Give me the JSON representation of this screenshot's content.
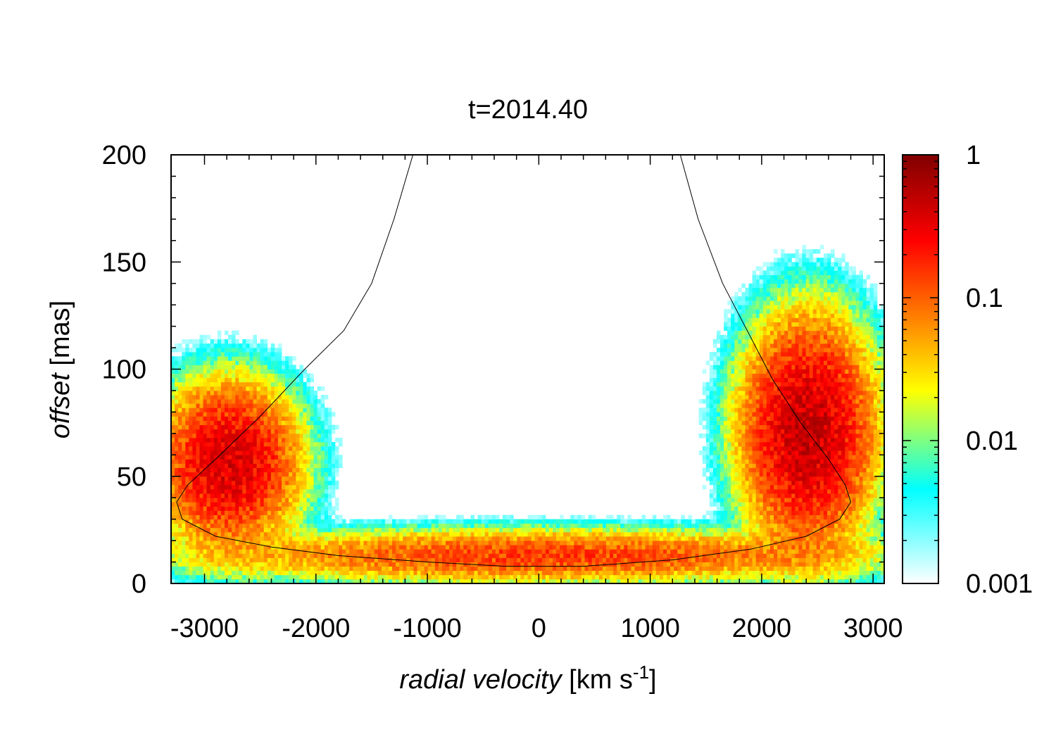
{
  "chart_data": {
    "type": "heatmap",
    "title": "t=2014.40",
    "xlabel": {
      "italic": "radial velocity",
      "unit_prefix": " [km s",
      "unit_sup": "-1",
      "unit_suffix": "]"
    },
    "ylabel": {
      "italic": "offset",
      "unit": " [mas]"
    },
    "xlim": [
      -3300,
      3100
    ],
    "ylim": [
      0,
      200
    ],
    "x_ticks": [
      -3000,
      -2000,
      -1000,
      0,
      1000,
      2000,
      3000
    ],
    "x_tick_labels": [
      "-3000",
      "-2000",
      "-1000",
      "0",
      "1000",
      "2000",
      "3000"
    ],
    "y_ticks": [
      0,
      50,
      100,
      150,
      200
    ],
    "y_tick_labels": [
      "0",
      "50",
      "100",
      "150",
      "200"
    ],
    "colorbar": {
      "scale": "log",
      "range": [
        0.001,
        1
      ],
      "ticks": [
        0.001,
        0.01,
        0.1,
        1
      ],
      "tick_labels": [
        "0.001",
        "0.01",
        "0.1",
        "1"
      ],
      "colors": [
        "#ffffff",
        "#00ffff",
        "#ffff00",
        "#ff8000",
        "#ff0000",
        "#800000"
      ]
    },
    "model_curve": {
      "color": "#000000",
      "points": [
        [
          -1130,
          200
        ],
        [
          -1300,
          170
        ],
        [
          -1500,
          140
        ],
        [
          -1750,
          118
        ],
        [
          -2100,
          100
        ],
        [
          -2500,
          78
        ],
        [
          -2900,
          58
        ],
        [
          -3150,
          46
        ],
        [
          -3250,
          38
        ],
        [
          -3200,
          30
        ],
        [
          -2900,
          22
        ],
        [
          -2400,
          17
        ],
        [
          -1800,
          13
        ],
        [
          -1000,
          10
        ],
        [
          -300,
          8
        ],
        [
          400,
          8
        ],
        [
          1200,
          11
        ],
        [
          1900,
          16
        ],
        [
          2400,
          22
        ],
        [
          2700,
          30
        ],
        [
          2800,
          38
        ],
        [
          2750,
          46
        ],
        [
          2600,
          58
        ],
        [
          2350,
          75
        ],
        [
          2100,
          95
        ],
        [
          1900,
          115
        ],
        [
          1650,
          140
        ],
        [
          1430,
          170
        ],
        [
          1270,
          200
        ]
      ]
    },
    "emission_features": [
      {
        "name": "left-lobe",
        "v_center": -2800,
        "offset_center": 55,
        "v_sigma": 300,
        "offset_sigma": 18,
        "peak": 0.4
      },
      {
        "name": "right-lobe",
        "v_center": 2400,
        "offset_center": 70,
        "v_sigma": 280,
        "offset_sigma": 25,
        "peak": 0.5
      },
      {
        "name": "bottom-arc",
        "v_center": 0,
        "offset_center": 12,
        "v_sigma": 1500,
        "offset_sigma": 6,
        "peak": 0.15
      }
    ]
  }
}
